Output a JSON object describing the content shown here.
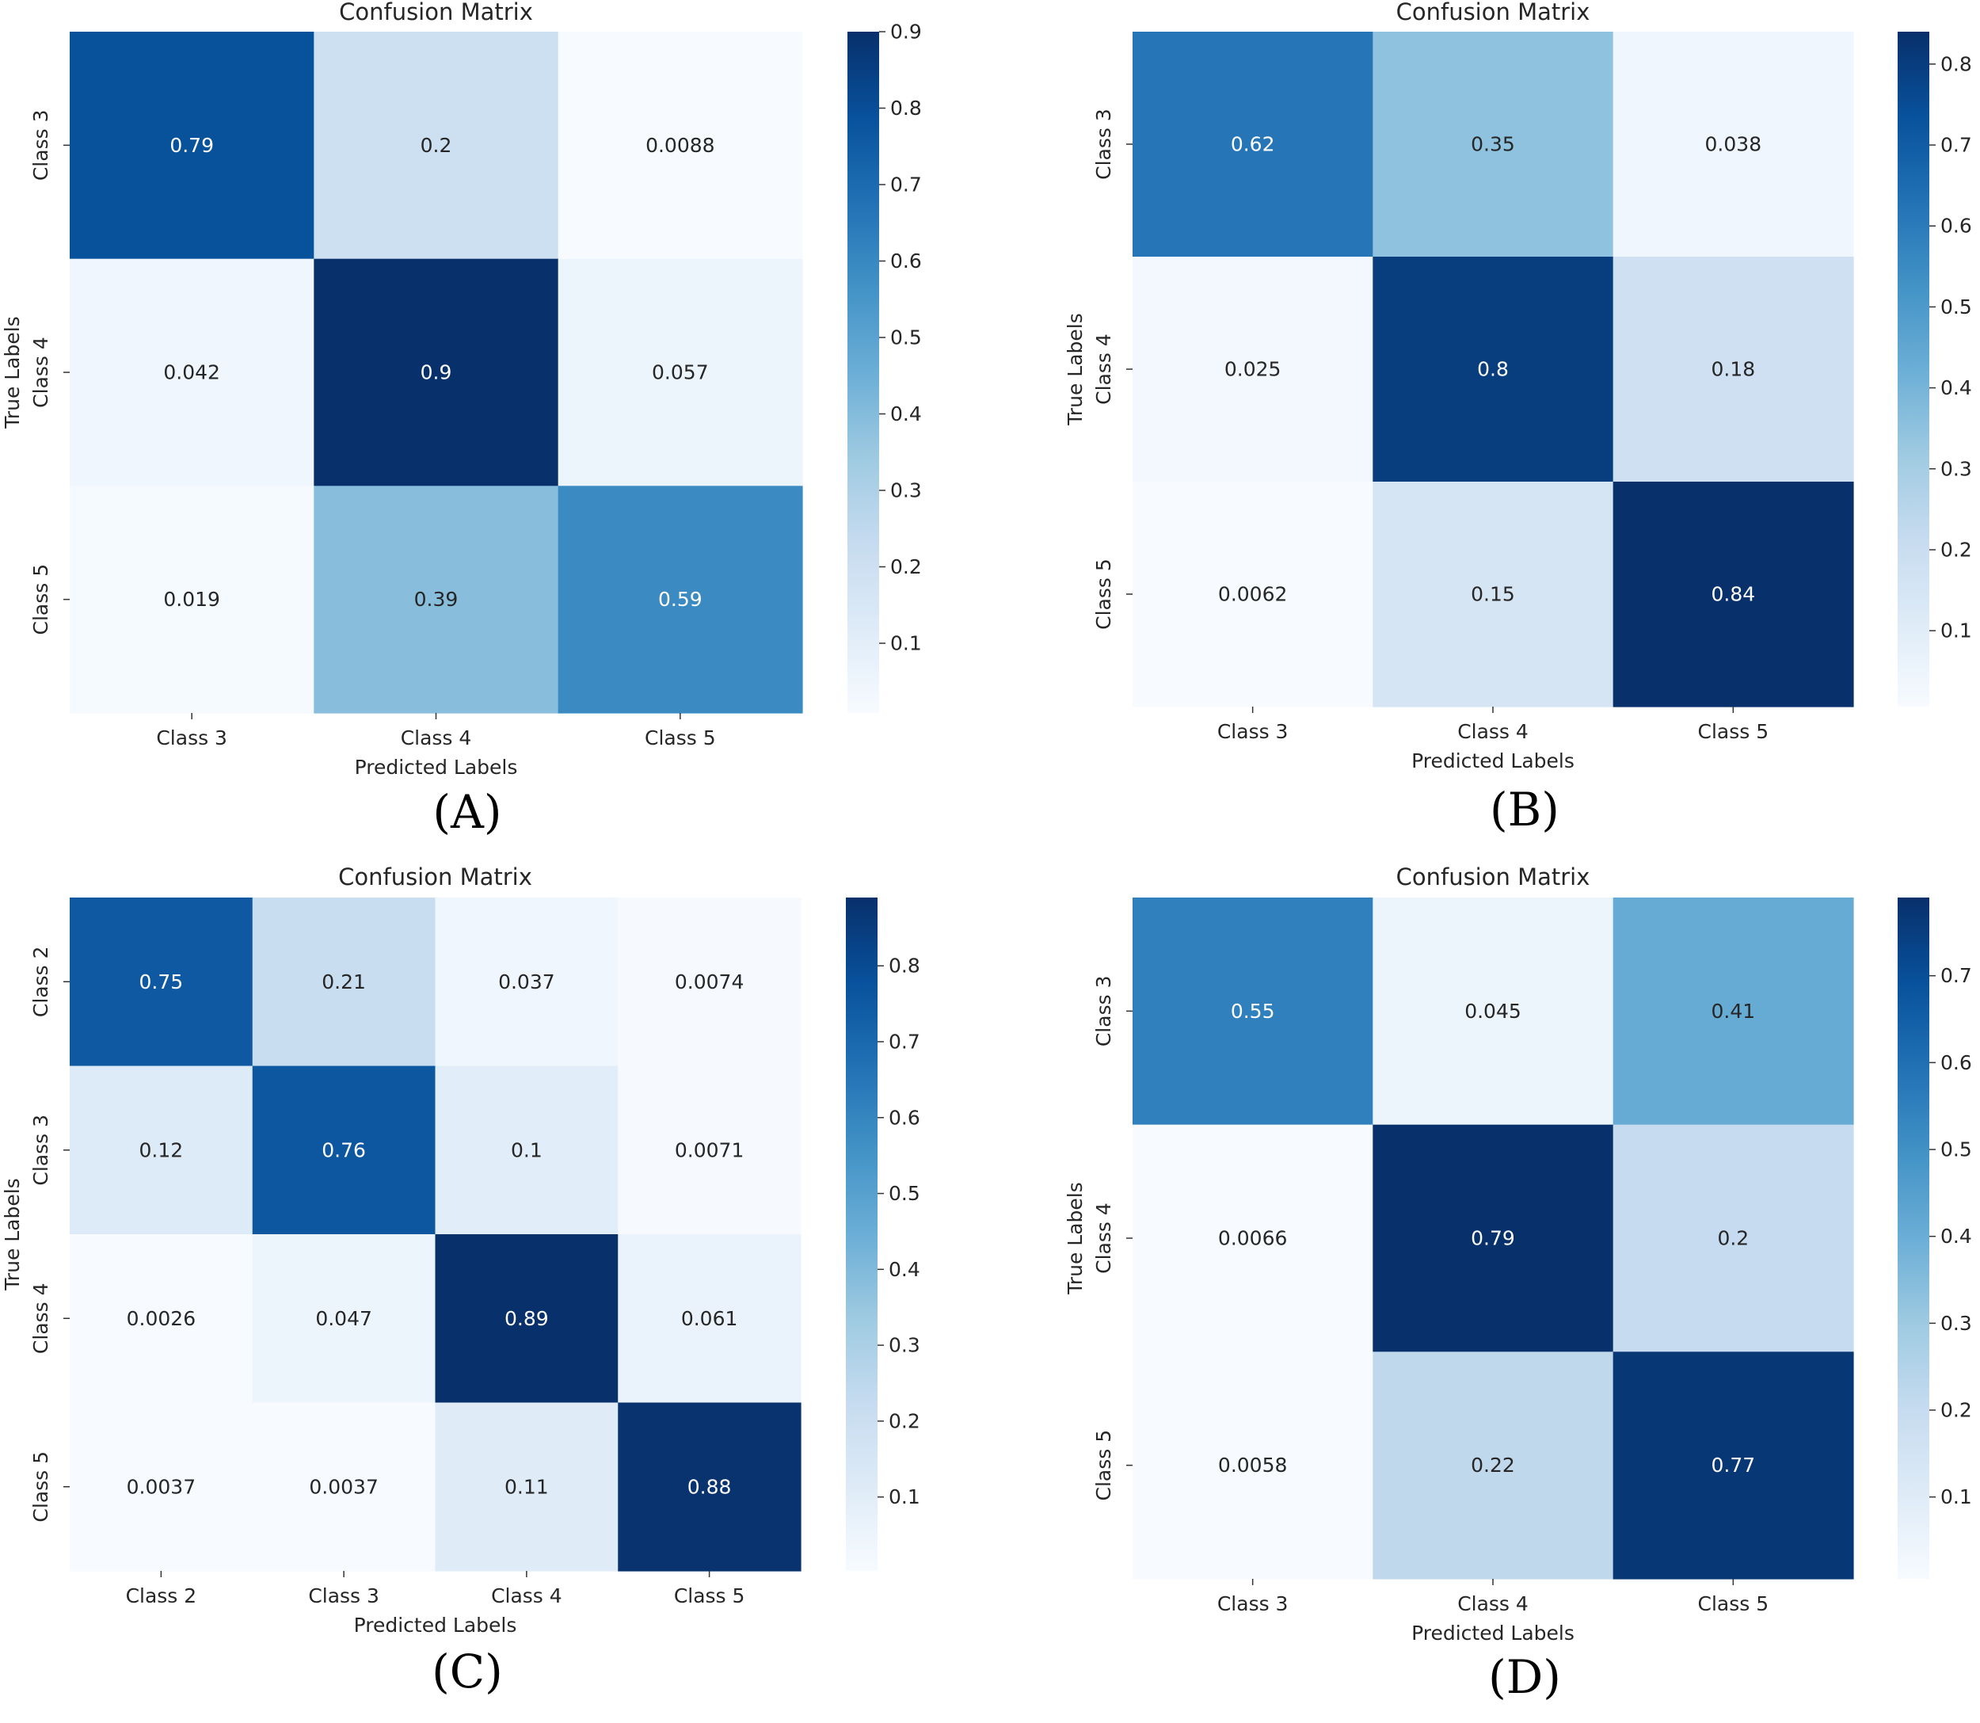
{
  "chart_data": [
    {
      "type": "heatmap",
      "panel_label": "(A)",
      "title": "Confusion Matrix",
      "xlabel": "Predicted Labels",
      "ylabel": "True Labels",
      "x_categories": [
        "Class 3",
        "Class 4",
        "Class 5"
      ],
      "y_categories": [
        "Class 3",
        "Class 4",
        "Class 5"
      ],
      "values": [
        [
          "0.79",
          "0.2",
          "0.0088"
        ],
        [
          "0.042",
          "0.9",
          "0.057"
        ],
        [
          "0.019",
          "0.39",
          "0.59"
        ]
      ],
      "colorbar_range": [
        0.0088,
        0.9
      ],
      "colorbar_ticks": [
        "0.1",
        "0.2",
        "0.3",
        "0.4",
        "0.5",
        "0.6",
        "0.7",
        "0.8",
        "0.9"
      ],
      "colormap": "Blues"
    },
    {
      "type": "heatmap",
      "panel_label": "(B)",
      "title": "Confusion Matrix",
      "xlabel": "Predicted Labels",
      "ylabel": "True Labels",
      "x_categories": [
        "Class 3",
        "Class 4",
        "Class 5"
      ],
      "y_categories": [
        "Class 3",
        "Class 4",
        "Class 5"
      ],
      "values": [
        [
          "0.62",
          "0.35",
          "0.038"
        ],
        [
          "0.025",
          "0.8",
          "0.18"
        ],
        [
          "0.0062",
          "0.15",
          "0.84"
        ]
      ],
      "colorbar_range": [
        0.0062,
        0.84
      ],
      "colorbar_ticks": [
        "0.1",
        "0.2",
        "0.3",
        "0.4",
        "0.5",
        "0.6",
        "0.7",
        "0.8"
      ],
      "colormap": "Blues"
    },
    {
      "type": "heatmap",
      "panel_label": "(C)",
      "title": "Confusion Matrix",
      "xlabel": "Predicted Labels",
      "ylabel": "True Labels",
      "x_categories": [
        "Class 2",
        "Class 3",
        "Class 4",
        "Class 5"
      ],
      "y_categories": [
        "Class 2",
        "Class 3",
        "Class 4",
        "Class 5"
      ],
      "values": [
        [
          "0.75",
          "0.21",
          "0.037",
          "0.0074"
        ],
        [
          "0.12",
          "0.76",
          "0.1",
          "0.0071"
        ],
        [
          "0.0026",
          "0.047",
          "0.89",
          "0.061"
        ],
        [
          "0.0037",
          "0.0037",
          "0.11",
          "0.88"
        ]
      ],
      "colorbar_range": [
        0.0026,
        0.89
      ],
      "colorbar_ticks": [
        "0.1",
        "0.2",
        "0.3",
        "0.4",
        "0.5",
        "0.6",
        "0.7",
        "0.8"
      ],
      "colormap": "Blues"
    },
    {
      "type": "heatmap",
      "panel_label": "(D)",
      "title": "Confusion Matrix",
      "xlabel": "Predicted Labels",
      "ylabel": "True Labels",
      "x_categories": [
        "Class 3",
        "Class 4",
        "Class 5"
      ],
      "y_categories": [
        "Class 3",
        "Class 4",
        "Class 5"
      ],
      "values": [
        [
          "0.55",
          "0.045",
          "0.41"
        ],
        [
          "0.0066",
          "0.79",
          "0.2"
        ],
        [
          "0.0058",
          "0.22",
          "0.77"
        ]
      ],
      "colorbar_range": [
        0.0058,
        0.79
      ],
      "colorbar_ticks": [
        "0.1",
        "0.2",
        "0.3",
        "0.4",
        "0.5",
        "0.6",
        "0.7"
      ],
      "colormap": "Blues"
    }
  ]
}
